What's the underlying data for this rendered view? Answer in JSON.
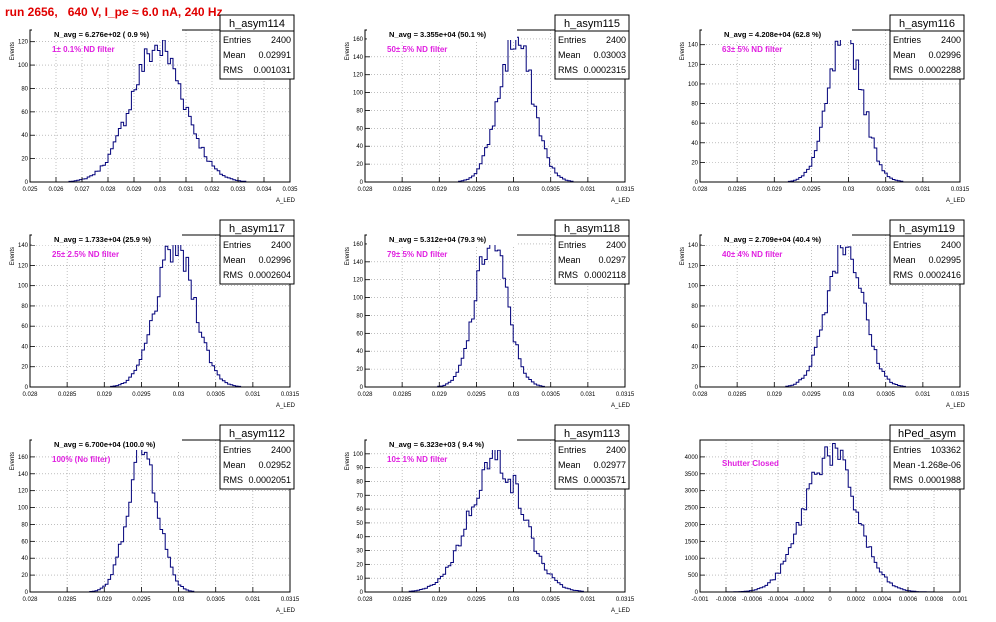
{
  "run_title": "run 2656,   640 V, I_pe ≈ 6.0 nA, 240 Hz",
  "colors": {
    "title": "#e00000",
    "line": "#00007a",
    "note": "#e020e0",
    "grid": "#999999"
  },
  "stats_labels": {
    "entries": "Entries",
    "mean": "Mean",
    "rms": "RMS"
  },
  "chart_data": [
    {
      "type": "bar",
      "name": "h_asym114",
      "title": "N_avg = 6.276e+02 ( 0.9 %)",
      "note": "1± 0.1% ND filter",
      "xlabel": "A_LED",
      "ylabel": "Events",
      "xlim": [
        0.025,
        0.035
      ],
      "xticks": [
        "0.025",
        "0.026",
        "0.027",
        "0.028",
        "0.029",
        "0.03",
        "0.031",
        "0.032",
        "0.033",
        "0.034",
        "0.035"
      ],
      "ylim": [
        0,
        130
      ],
      "yticks": [
        "0",
        "20",
        "40",
        "60",
        "80",
        "100",
        "120"
      ],
      "stats": {
        "entries": "2400",
        "mean": "0.02991",
        "rms": "0.001031"
      },
      "mean": 0.02991,
      "rms": 0.001031,
      "peak": 115,
      "n_bins": 100
    },
    {
      "type": "bar",
      "name": "h_asym115",
      "title": "N_avg = 3.355e+04 (50.1 %)",
      "note": "50± 5% ND filter",
      "xlabel": "A_LED",
      "ylabel": "Events",
      "xlim": [
        0.028,
        0.0315
      ],
      "xticks": [
        "0.028",
        "0.0285",
        "0.029",
        "0.0295",
        "0.03",
        "0.0305",
        "0.031",
        "0.0315"
      ],
      "ylim": [
        0,
        170
      ],
      "yticks": [
        "0",
        "20",
        "40",
        "60",
        "80",
        "100",
        "120",
        "140",
        "160"
      ],
      "stats": {
        "entries": "2400",
        "mean": "0.03003",
        "rms": "0.0002315"
      },
      "mean": 0.03003,
      "rms": 0.0002315,
      "peak": 158,
      "n_bins": 100
    },
    {
      "type": "bar",
      "name": "h_asym116",
      "title": "N_avg = 4.208e+04 (62.8 %)",
      "note": "63± 5% ND filter",
      "xlabel": "A_LED",
      "ylabel": "Events",
      "xlim": [
        0.028,
        0.0315
      ],
      "xticks": [
        "0.028",
        "0.0285",
        "0.029",
        "0.0295",
        "0.03",
        "0.0305",
        "0.031",
        "0.0315"
      ],
      "ylim": [
        0,
        155
      ],
      "yticks": [
        "0",
        "20",
        "40",
        "60",
        "80",
        "100",
        "120",
        "140"
      ],
      "stats": {
        "entries": "2400",
        "mean": "0.02996",
        "rms": "0.0002288"
      },
      "mean": 0.02996,
      "rms": 0.0002288,
      "peak": 150,
      "n_bins": 100
    },
    {
      "type": "bar",
      "name": "h_asym117",
      "title": "N_avg = 1.733e+04 (25.9 %)",
      "note": "25± 2.5% ND filter",
      "xlabel": "A_LED",
      "ylabel": "Events",
      "xlim": [
        0.028,
        0.0315
      ],
      "xticks": [
        "0.028",
        "0.0285",
        "0.029",
        "0.0295",
        "0.03",
        "0.0305",
        "0.031",
        "0.0315"
      ],
      "ylim": [
        0,
        150
      ],
      "yticks": [
        "0",
        "20",
        "40",
        "60",
        "80",
        "100",
        "120",
        "140"
      ],
      "stats": {
        "entries": "2400",
        "mean": "0.02996",
        "rms": "0.0002604"
      },
      "mean": 0.02996,
      "rms": 0.0002604,
      "peak": 138,
      "n_bins": 100
    },
    {
      "type": "bar",
      "name": "h_asym118",
      "title": "N_avg = 5.312e+04 (79.3 %)",
      "note": "79± 5% ND filter",
      "xlabel": "A_LED",
      "ylabel": "Events",
      "xlim": [
        0.028,
        0.0315
      ],
      "xticks": [
        "0.028",
        "0.0285",
        "0.029",
        "0.0295",
        "0.03",
        "0.0305",
        "0.031",
        "0.0315"
      ],
      "ylim": [
        0,
        170
      ],
      "yticks": [
        "0",
        "20",
        "40",
        "60",
        "80",
        "100",
        "120",
        "140",
        "160"
      ],
      "stats": {
        "entries": "2400",
        "mean": "0.0297",
        "rms": "0.0002118"
      },
      "mean": 0.0297,
      "rms": 0.0002118,
      "peak": 165,
      "n_bins": 100
    },
    {
      "type": "bar",
      "name": "h_asym119",
      "title": "N_avg = 2.709e+04 (40.4 %)",
      "note": "40± 4% ND filter",
      "xlabel": "A_LED",
      "ylabel": "Events",
      "xlim": [
        0.028,
        0.0315
      ],
      "xticks": [
        "0.028",
        "0.0285",
        "0.029",
        "0.0295",
        "0.03",
        "0.0305",
        "0.031",
        "0.0315"
      ],
      "ylim": [
        0,
        150
      ],
      "yticks": [
        "0",
        "20",
        "40",
        "60",
        "80",
        "100",
        "120",
        "140"
      ],
      "stats": {
        "entries": "2400",
        "mean": "0.02995",
        "rms": "0.0002416"
      },
      "mean": 0.02995,
      "rms": 0.0002416,
      "peak": 143,
      "n_bins": 100
    },
    {
      "type": "bar",
      "name": "h_asym112",
      "title": "N_avg = 6.700e+04 (100.0 %)",
      "note": "100% (No filter)",
      "xlabel": "A_LED",
      "ylabel": "Events",
      "xlim": [
        0.028,
        0.0315
      ],
      "xticks": [
        "0.028",
        "0.0285",
        "0.029",
        "0.0295",
        "0.03",
        "0.0305",
        "0.031",
        "0.0315"
      ],
      "ylim": [
        0,
        180
      ],
      "yticks": [
        "0",
        "20",
        "40",
        "60",
        "80",
        "100",
        "120",
        "140",
        "160"
      ],
      "stats": {
        "entries": "2400",
        "mean": "0.02952",
        "rms": "0.0002051"
      },
      "mean": 0.02952,
      "rms": 0.0002051,
      "peak": 168,
      "n_bins": 100
    },
    {
      "type": "bar",
      "name": "h_asym113",
      "title": "N_avg = 6.323e+03 ( 9.4 %)",
      "note": "10± 1% ND filter",
      "xlabel": "A_LED",
      "ylabel": "Events",
      "xlim": [
        0.028,
        0.0315
      ],
      "xticks": [
        "0.028",
        "0.0285",
        "0.029",
        "0.0295",
        "0.03",
        "0.0305",
        "0.031",
        "0.0315"
      ],
      "ylim": [
        0,
        110
      ],
      "yticks": [
        "0",
        "10",
        "20",
        "30",
        "40",
        "50",
        "60",
        "70",
        "80",
        "90",
        "100"
      ],
      "stats": {
        "entries": "2400",
        "mean": "0.02977",
        "rms": "0.0003571"
      },
      "mean": 0.02977,
      "rms": 0.0003571,
      "peak": 96,
      "n_bins": 100
    },
    {
      "type": "bar",
      "name": "hPed_asym",
      "title": "",
      "note": "Shutter Closed",
      "xlabel": "",
      "ylabel": "",
      "xlim": [
        -0.001,
        0.001
      ],
      "xticks": [
        "-0.001",
        "-0.0008",
        "-0.0006",
        "-0.0004",
        "-0.0002",
        "0",
        "0.0002",
        "0.0004",
        "0.0006",
        "0.0008",
        "0.001"
      ],
      "ylim": [
        0,
        4500
      ],
      "yticks": [
        "0",
        "500",
        "1000",
        "1500",
        "2000",
        "2500",
        "3000",
        "3500",
        "4000"
      ],
      "stats": {
        "entries": "103362",
        "mean": "-1.268e-06",
        "rms": "0.0001988"
      },
      "mean": -1.268e-06,
      "rms": 0.0001988,
      "peak": 4150,
      "n_bins": 100
    }
  ]
}
